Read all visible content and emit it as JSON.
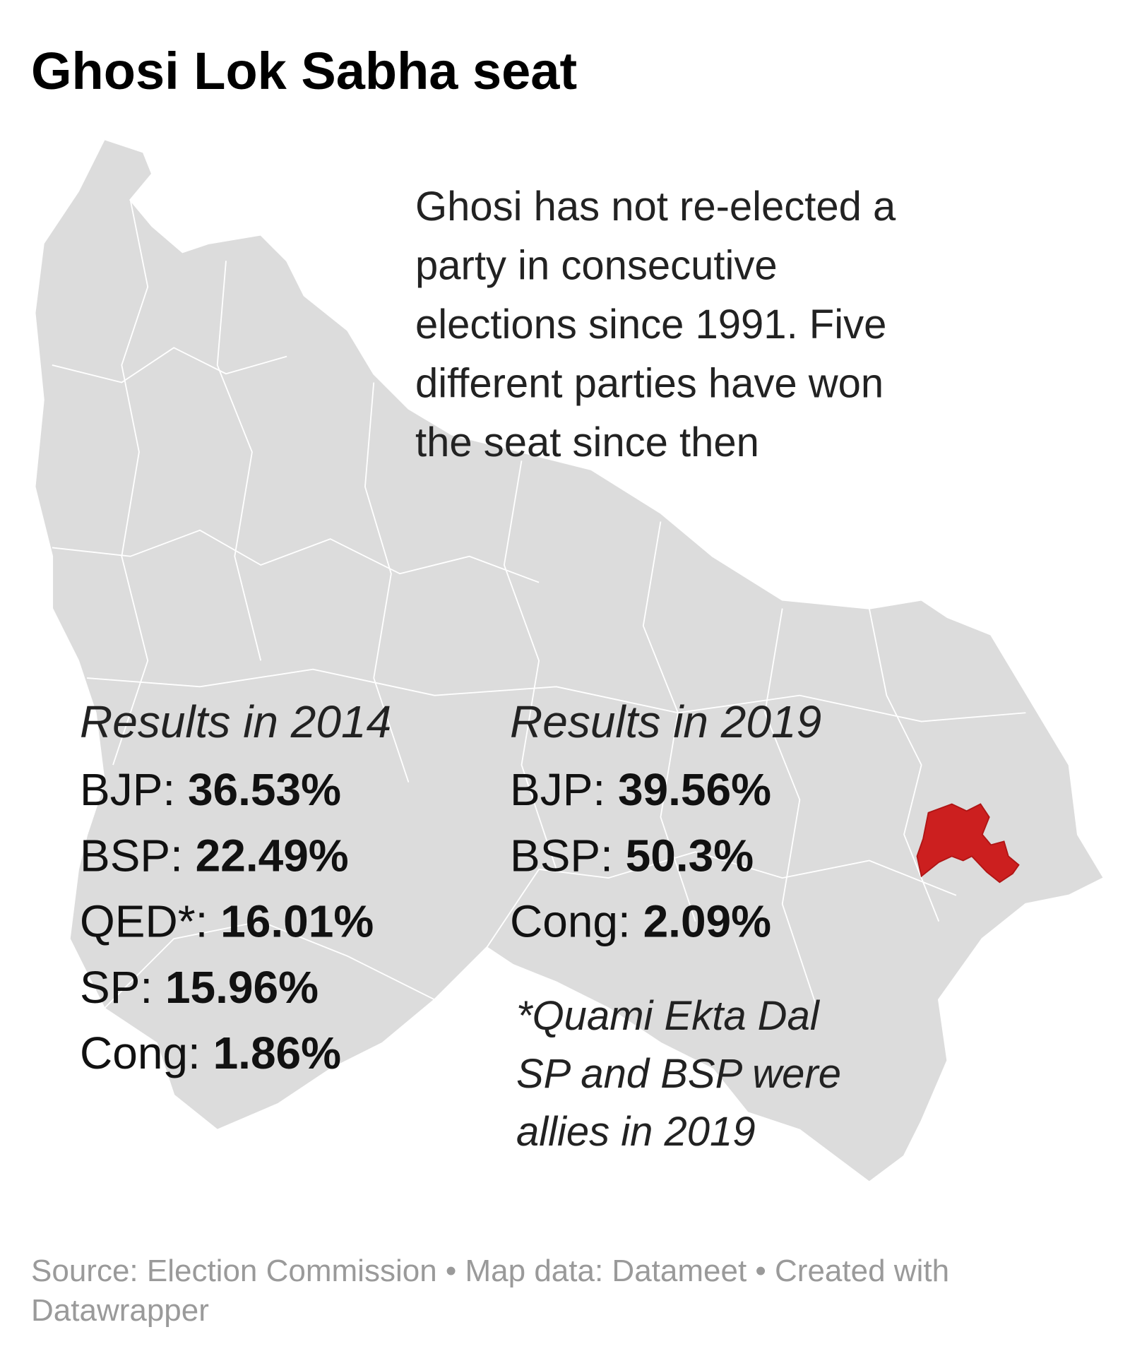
{
  "header": {
    "title": "Ghosi Lok Sabha seat"
  },
  "annotation": {
    "lines": [
      "Ghosi has not re-elected a",
      "party in consecutive",
      "elections since 1991. Five",
      "different parties have won",
      "the seat since then"
    ]
  },
  "results_2014": {
    "heading": "Results in 2014",
    "rows": [
      {
        "party": "BJP:",
        "value": "36.53%"
      },
      {
        "party": "BSP:",
        "value": "22.49%"
      },
      {
        "party": "QED*:",
        "value": "16.01%"
      },
      {
        "party": "SP:",
        "value": "15.96%"
      },
      {
        "party": "Cong:",
        "value": "1.86%"
      }
    ]
  },
  "results_2019": {
    "heading": "Results in 2019",
    "rows": [
      {
        "party": "BJP:",
        "value": "39.56%"
      },
      {
        "party": "BSP:",
        "value": "50.3%"
      },
      {
        "party": "Cong:",
        "value": "2.09%"
      }
    ]
  },
  "footnote": {
    "lines": [
      "*Quami Ekta Dal",
      "SP and BSP were",
      "allies in 2019"
    ]
  },
  "source": {
    "lines": [
      "Source: Election Commission • Map data: Datameet • Created with",
      "Datawrapper"
    ]
  }
}
